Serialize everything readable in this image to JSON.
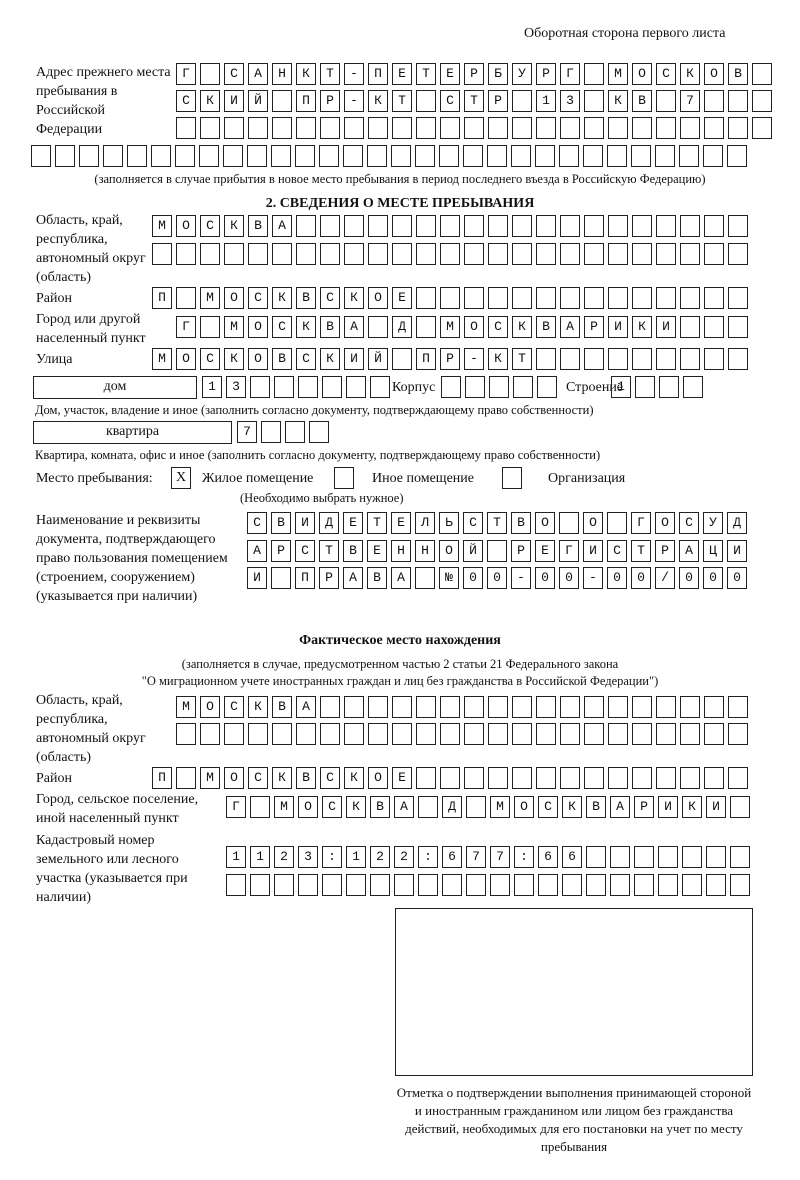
{
  "header": {
    "page_side": "Оборотная сторона первого листа"
  },
  "previous_address": {
    "label": "Адрес прежнего места пребывания в Российской Федерации",
    "rows": [
      "Г САНКТ-ПЕТЕРБУРГ МОСКОВ",
      "СКИЙ ПР-КТ СТР 13 КВ 7",
      "",
      ""
    ],
    "note": "(заполняется в случае прибытия в новое место пребывания в период последнего въезда в Российскую Федерацию)"
  },
  "section2": {
    "title": "2. СВЕДЕНИЯ О МЕСТЕ ПРЕБЫВАНИЯ",
    "region_label": "Область, край, республика, автономный округ (область)",
    "region_rows": [
      "МОСКВА",
      ""
    ],
    "district_label": "Район",
    "district": "П МОСКВСКОЕ",
    "city_label": "Город или другой населенный пункт",
    "city": "Г МОСКВА Д МОСКВАРИКИ",
    "street_label": "Улица",
    "street": "МОСКОВСКИЙ ПР-КТ",
    "house_type": "дом",
    "house": "13",
    "korpus_label": "Корпус",
    "korpus": "",
    "building_label": "Строение",
    "building": "1",
    "house_note": "Дом, участок, владение и иное (заполнить согласно документу, подтверждающему право собственности)",
    "apt_type": "квартира",
    "apt": "7",
    "apt_note": "Квартира, комната, офис и иное (заполнить согласно документу, подтверждающему право собственности)",
    "place_label": "Место пребывания:",
    "place_options": [
      {
        "label": "Жилое помещение",
        "mark": "X"
      },
      {
        "label": "Иное помещение",
        "mark": ""
      },
      {
        "label": "Организация",
        "mark": ""
      }
    ],
    "place_note": "(Необходимо выбрать нужное)",
    "doc_label": "Наименование и реквизиты документа, подтверждающего право пользования помещением (строением, сооружением) (указывается при наличии)",
    "doc_rows": [
      "СВИДЕТЕЛЬСТВО О ГОСУД",
      "АРСТВЕННОЙ РЕГИСТРАЦИ",
      "И ПРАВА №00-00-00/000"
    ]
  },
  "actual": {
    "title": "Фактическое место нахождения",
    "note1": "(заполняется в случае, предусмотренном частью 2 статьи 21 Федерального закона",
    "note2": "\"О миграционном учете иностранных граждан и лиц без гражданства в Российской Федерации\")",
    "region_label": "Область, край, республика, автономный округ (область)",
    "region_rows": [
      "МОСКВА",
      ""
    ],
    "district_label": "Район",
    "district": "П МОСКВСКОЕ",
    "city_label": "Город, сельское поселение, иной населенный пункт",
    "city": "Г МОСКВА Д МОСКВАРИКИ",
    "cadastral_label": "Кадастровый номер земельного или лесного участка (указывается при наличии)",
    "cadastral_rows": [
      "1123:122:677:66",
      ""
    ]
  },
  "stamp": {
    "caption": "Отметка о подтверждении выполнения принимающей стороной и иностранным гражданином или лицом без гражданства действий, необходимых для его постановки на учет по месту пребывания"
  }
}
